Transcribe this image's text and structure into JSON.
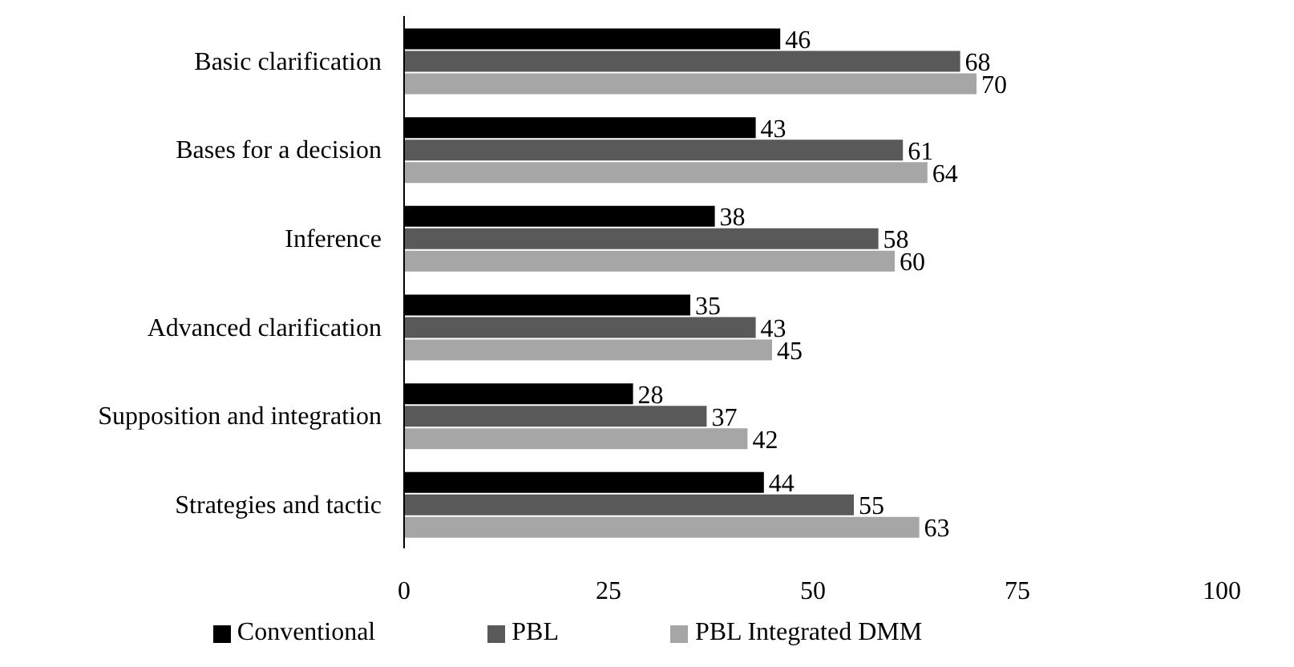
{
  "chart_data": {
    "type": "bar",
    "orientation": "horizontal",
    "categories": [
      "Basic clarification",
      "Bases for a decision",
      "Inference",
      "Advanced clarification",
      "Supposition and integration",
      "Strategies and tactic"
    ],
    "series": [
      {
        "name": "Conventional",
        "color": "#000000",
        "values": [
          46,
          43,
          38,
          35,
          28,
          44
        ]
      },
      {
        "name": "PBL",
        "color": "#595959",
        "values": [
          68,
          61,
          58,
          43,
          37,
          55
        ]
      },
      {
        "name": "PBL Integrated DMM",
        "color": "#a6a6a6",
        "values": [
          70,
          64,
          60,
          45,
          42,
          63
        ]
      }
    ],
    "xlim": [
      0,
      100
    ],
    "xticks": [
      0,
      25,
      50,
      75,
      100
    ],
    "data_labels": true,
    "grid": false,
    "legend": "bottom"
  }
}
